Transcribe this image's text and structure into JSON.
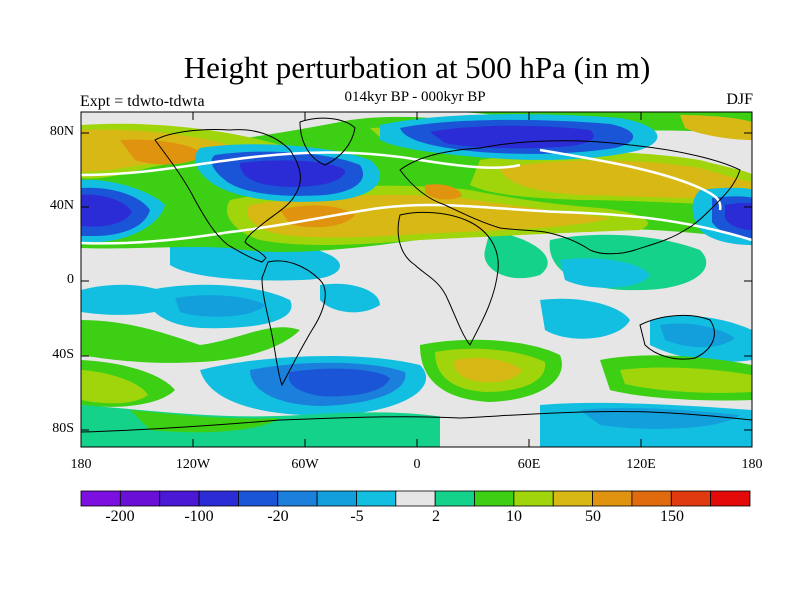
{
  "title": "Height perturbation at 500 hPa (in m)",
  "subtitle": "014kyr BP - 000kyr BP",
  "left_label": "Expt = tdwto-tdwta",
  "right_label": "DJF",
  "map": {
    "projection": "cylindrical equidistant",
    "lat_labels": [
      "80N",
      "40N",
      "0",
      "40S",
      "80S"
    ],
    "lon_labels": [
      "180",
      "120W",
      "60W",
      "0",
      "60E",
      "120E",
      "180"
    ]
  },
  "colorbar": {
    "colors": [
      "#7b10e0",
      "#6a0fd6",
      "#4b18d6",
      "#2c2cd6",
      "#1a55d8",
      "#1b7fdc",
      "#139fdc",
      "#12bfe0",
      "#e6e6e6",
      "#14d28a",
      "#3ccf14",
      "#a0d50c",
      "#d8b814",
      "#e0930e",
      "#e06a0e",
      "#e03a10",
      "#e40a0a"
    ],
    "tick_labels": [
      "-200",
      "-100",
      "-20",
      "-5",
      "2",
      "10",
      "50",
      "150"
    ]
  },
  "colors": {
    "coastline": "#000000",
    "zero_contour": "#ffffff",
    "background": "#e6e6e6"
  }
}
